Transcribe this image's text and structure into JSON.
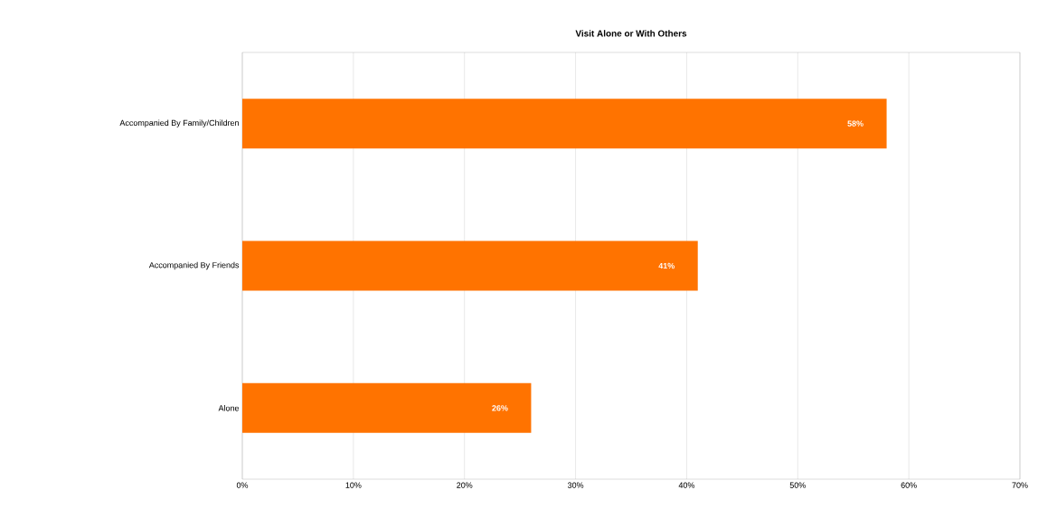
{
  "chart_data": {
    "type": "bar",
    "orientation": "horizontal",
    "title": "Visit Alone or With Others",
    "categories": [
      "Accompanied By Family/Children",
      "Accompanied By Friends",
      "Alone"
    ],
    "values": [
      58,
      41,
      26
    ],
    "value_labels": [
      "58%",
      "41%",
      "26%"
    ],
    "color": "#ff7300",
    "xlim": [
      0,
      70
    ],
    "xticks": [
      {
        "value": 0,
        "label": "0%"
      },
      {
        "value": 10,
        "label": "10%"
      },
      {
        "value": 20,
        "label": "20%"
      },
      {
        "value": 30,
        "label": "30%"
      },
      {
        "value": 40,
        "label": "40%"
      },
      {
        "value": 50,
        "label": "50%"
      },
      {
        "value": 60,
        "label": "60%"
      },
      {
        "value": 70,
        "label": "70%"
      }
    ],
    "grid": "x"
  }
}
